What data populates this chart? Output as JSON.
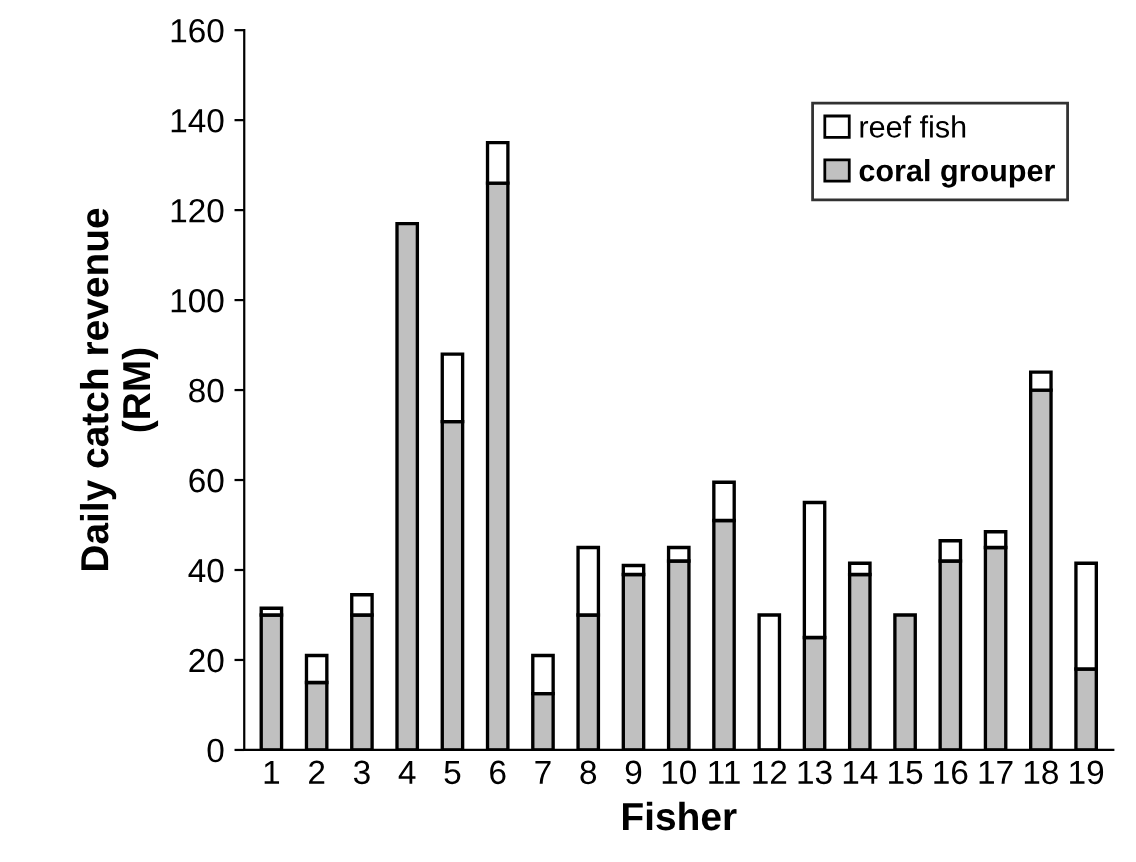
{
  "chart_data": {
    "type": "bar",
    "stacked": true,
    "xlabel": "Fisher",
    "ylabel": "Daily catch revenue\n(RM)",
    "categories": [
      "1",
      "2",
      "3",
      "4",
      "5",
      "6",
      "7",
      "8",
      "9",
      "10",
      "11",
      "12",
      "13",
      "14",
      "15",
      "16",
      "17",
      "18",
      "19"
    ],
    "series": [
      {
        "name": "coral grouper",
        "color": "#c0c0c0",
        "values": [
          30,
          15,
          30,
          117,
          73,
          126,
          12.5,
          30,
          39,
          42,
          51,
          0,
          25,
          39,
          30,
          42,
          45,
          80,
          18
        ]
      },
      {
        "name": "reef fish",
        "color": "#ffffff",
        "values": [
          1.5,
          6,
          4.5,
          0,
          15,
          9,
          8.5,
          15,
          2,
          3,
          8.5,
          30,
          30,
          2.5,
          0,
          4.5,
          3.5,
          4,
          23.5
        ]
      }
    ],
    "ylim": [
      0,
      160
    ],
    "yticks": [
      0,
      20,
      40,
      60,
      80,
      100,
      120,
      140,
      160
    ],
    "grid": false,
    "legend": "top right"
  }
}
